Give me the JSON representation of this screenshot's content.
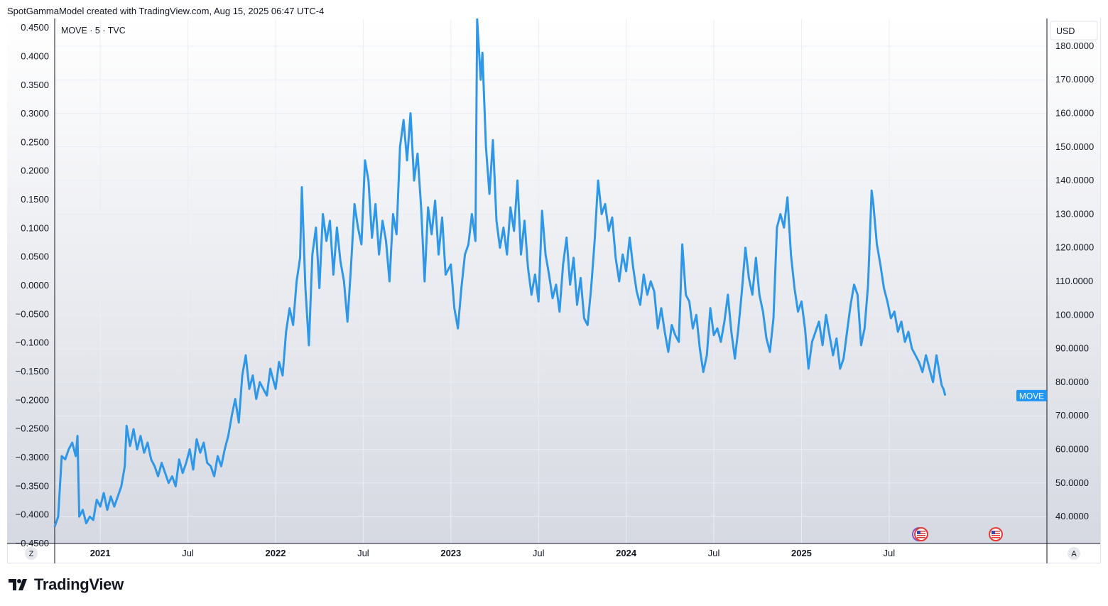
{
  "header": {
    "text": "SpotGammaModel created with TradingView.com, Aug 15, 2025 06:47 UTC-4"
  },
  "legend": {
    "text": "MOVE · 5 · TVC"
  },
  "currency_button": {
    "label": "USD"
  },
  "corner_left": {
    "label": "Z"
  },
  "corner_right": {
    "label": "A"
  },
  "price_tag": {
    "label": "MOVE",
    "color": "#2196f3"
  },
  "footer": {
    "brand": "TradingView"
  },
  "colors": {
    "line": "#2f97e8",
    "grid": "#e9eef5",
    "bg_top": "#ffffff",
    "bg_bottom": "#d6d9e2"
  },
  "icons": [
    "us-flag-event-icon",
    "us-flag-event-icon"
  ],
  "chart_data": {
    "type": "line",
    "series": [
      {
        "name": "MOVE"
      }
    ],
    "x_ticks": [
      {
        "label": "2021",
        "bold": true
      },
      {
        "label": "Jul",
        "bold": false
      },
      {
        "label": "2022",
        "bold": true
      },
      {
        "label": "Jul",
        "bold": false
      },
      {
        "label": "2023",
        "bold": true
      },
      {
        "label": "Jul",
        "bold": false
      },
      {
        "label": "2024",
        "bold": true
      },
      {
        "label": "Jul",
        "bold": false
      },
      {
        "label": "2025",
        "bold": true
      },
      {
        "label": "Jul",
        "bold": false
      }
    ],
    "x_tick_dates": [
      2021.0,
      2021.5,
      2022.0,
      2022.5,
      2023.0,
      2023.5,
      2024.0,
      2024.5,
      2025.0,
      2025.5
    ],
    "xlim": [
      2020.74,
      2026.4
    ],
    "left_axis": {
      "ylim": [
        -0.45,
        0.465
      ],
      "ticks": [
        "0.4500",
        "0.4000",
        "0.3500",
        "0.3000",
        "0.2500",
        "0.2000",
        "0.1500",
        "0.1000",
        "0.0500",
        "0.0000",
        "−0.0500",
        "−0.1000",
        "−0.1500",
        "−0.2000",
        "−0.2500",
        "−0.3000",
        "−0.3500",
        "−0.4000",
        "−0.4500"
      ],
      "tick_values": [
        0.45,
        0.4,
        0.35,
        0.3,
        0.25,
        0.2,
        0.15,
        0.1,
        0.05,
        0.0,
        -0.05,
        -0.1,
        -0.15,
        -0.2,
        -0.25,
        -0.3,
        -0.35,
        -0.4,
        -0.45
      ]
    },
    "right_axis": {
      "ylim": [
        32.0,
        188.0
      ],
      "ticks": [
        "180.0000",
        "170.0000",
        "160.0000",
        "150.0000",
        "140.0000",
        "130.0000",
        "120.0000",
        "110.0000",
        "100.0000",
        "90.0000",
        "80.0000",
        "70.0000",
        "60.0000",
        "50.0000",
        "40.0000"
      ],
      "tick_values": [
        180,
        170,
        160,
        150,
        140,
        130,
        120,
        110,
        100,
        90,
        80,
        70,
        60,
        50,
        40
      ]
    },
    "last_value": 76.0,
    "points": [
      [
        2020.74,
        37
      ],
      [
        2020.76,
        40
      ],
      [
        2020.78,
        58
      ],
      [
        2020.8,
        57
      ],
      [
        2020.82,
        60
      ],
      [
        2020.84,
        62
      ],
      [
        2020.86,
        58
      ],
      [
        2020.87,
        64
      ],
      [
        2020.88,
        40
      ],
      [
        2020.9,
        42
      ],
      [
        2020.92,
        38
      ],
      [
        2020.94,
        40
      ],
      [
        2020.96,
        39
      ],
      [
        2020.98,
        45
      ],
      [
        2021.0,
        43
      ],
      [
        2021.02,
        47
      ],
      [
        2021.04,
        42
      ],
      [
        2021.06,
        46
      ],
      [
        2021.08,
        43
      ],
      [
        2021.1,
        46
      ],
      [
        2021.12,
        49
      ],
      [
        2021.14,
        55
      ],
      [
        2021.15,
        67
      ],
      [
        2021.17,
        61
      ],
      [
        2021.19,
        66
      ],
      [
        2021.21,
        60
      ],
      [
        2021.23,
        64
      ],
      [
        2021.25,
        59
      ],
      [
        2021.27,
        62
      ],
      [
        2021.29,
        57
      ],
      [
        2021.31,
        55
      ],
      [
        2021.33,
        52
      ],
      [
        2021.35,
        56
      ],
      [
        2021.37,
        53
      ],
      [
        2021.39,
        50
      ],
      [
        2021.41,
        52
      ],
      [
        2021.43,
        49
      ],
      [
        2021.45,
        57
      ],
      [
        2021.47,
        53
      ],
      [
        2021.49,
        56
      ],
      [
        2021.51,
        60
      ],
      [
        2021.53,
        54
      ],
      [
        2021.55,
        63
      ],
      [
        2021.57,
        59
      ],
      [
        2021.59,
        62
      ],
      [
        2021.61,
        56
      ],
      [
        2021.63,
        55
      ],
      [
        2021.65,
        52
      ],
      [
        2021.67,
        58
      ],
      [
        2021.69,
        55
      ],
      [
        2021.71,
        60
      ],
      [
        2021.73,
        64
      ],
      [
        2021.75,
        70
      ],
      [
        2021.77,
        75
      ],
      [
        2021.79,
        68
      ],
      [
        2021.81,
        82
      ],
      [
        2021.83,
        88
      ],
      [
        2021.85,
        78
      ],
      [
        2021.87,
        82
      ],
      [
        2021.89,
        75
      ],
      [
        2021.91,
        80
      ],
      [
        2021.93,
        78
      ],
      [
        2021.95,
        76
      ],
      [
        2021.97,
        84
      ],
      [
        2022.0,
        78
      ],
      [
        2022.02,
        86
      ],
      [
        2022.04,
        82
      ],
      [
        2022.06,
        95
      ],
      [
        2022.08,
        102
      ],
      [
        2022.1,
        97
      ],
      [
        2022.12,
        110
      ],
      [
        2022.14,
        117
      ],
      [
        2022.15,
        138
      ],
      [
        2022.17,
        108
      ],
      [
        2022.19,
        91
      ],
      [
        2022.21,
        118
      ],
      [
        2022.23,
        126
      ],
      [
        2022.25,
        108
      ],
      [
        2022.27,
        130
      ],
      [
        2022.29,
        122
      ],
      [
        2022.31,
        128
      ],
      [
        2022.33,
        112
      ],
      [
        2022.35,
        126
      ],
      [
        2022.37,
        116
      ],
      [
        2022.39,
        110
      ],
      [
        2022.41,
        98
      ],
      [
        2022.43,
        114
      ],
      [
        2022.45,
        133
      ],
      [
        2022.47,
        126
      ],
      [
        2022.49,
        121
      ],
      [
        2022.51,
        146
      ],
      [
        2022.53,
        140
      ],
      [
        2022.55,
        123
      ],
      [
        2022.57,
        133
      ],
      [
        2022.59,
        118
      ],
      [
        2022.61,
        128
      ],
      [
        2022.63,
        122
      ],
      [
        2022.65,
        110
      ],
      [
        2022.67,
        130
      ],
      [
        2022.69,
        124
      ],
      [
        2022.71,
        150
      ],
      [
        2022.73,
        158
      ],
      [
        2022.75,
        146
      ],
      [
        2022.77,
        160
      ],
      [
        2022.79,
        140
      ],
      [
        2022.81,
        148
      ],
      [
        2022.83,
        132
      ],
      [
        2022.85,
        110
      ],
      [
        2022.87,
        132
      ],
      [
        2022.89,
        124
      ],
      [
        2022.91,
        134
      ],
      [
        2022.93,
        118
      ],
      [
        2022.95,
        129
      ],
      [
        2022.97,
        112
      ],
      [
        2023.0,
        115
      ],
      [
        2023.02,
        102
      ],
      [
        2023.04,
        96
      ],
      [
        2023.06,
        108
      ],
      [
        2023.08,
        118
      ],
      [
        2023.1,
        121
      ],
      [
        2023.12,
        130
      ],
      [
        2023.14,
        122
      ],
      [
        2023.15,
        188
      ],
      [
        2023.17,
        170
      ],
      [
        2023.18,
        178
      ],
      [
        2023.2,
        150
      ],
      [
        2023.22,
        136
      ],
      [
        2023.24,
        152
      ],
      [
        2023.26,
        128
      ],
      [
        2023.28,
        120
      ],
      [
        2023.3,
        126
      ],
      [
        2023.32,
        118
      ],
      [
        2023.34,
        132
      ],
      [
        2023.36,
        125
      ],
      [
        2023.38,
        140
      ],
      [
        2023.4,
        118
      ],
      [
        2023.42,
        128
      ],
      [
        2023.44,
        114
      ],
      [
        2023.46,
        106
      ],
      [
        2023.48,
        112
      ],
      [
        2023.5,
        104
      ],
      [
        2023.52,
        131
      ],
      [
        2023.54,
        118
      ],
      [
        2023.56,
        112
      ],
      [
        2023.58,
        105
      ],
      [
        2023.6,
        109
      ],
      [
        2023.62,
        101
      ],
      [
        2023.64,
        115
      ],
      [
        2023.66,
        123
      ],
      [
        2023.68,
        109
      ],
      [
        2023.7,
        117
      ],
      [
        2023.72,
        103
      ],
      [
        2023.74,
        111
      ],
      [
        2023.76,
        99
      ],
      [
        2023.78,
        97
      ],
      [
        2023.8,
        108
      ],
      [
        2023.82,
        122
      ],
      [
        2023.84,
        140
      ],
      [
        2023.86,
        130
      ],
      [
        2023.88,
        133
      ],
      [
        2023.9,
        125
      ],
      [
        2023.92,
        129
      ],
      [
        2023.94,
        117
      ],
      [
        2023.96,
        110
      ],
      [
        2023.98,
        118
      ],
      [
        2024.0,
        113
      ],
      [
        2024.02,
        123
      ],
      [
        2024.04,
        114
      ],
      [
        2024.06,
        107
      ],
      [
        2024.08,
        103
      ],
      [
        2024.1,
        112
      ],
      [
        2024.12,
        106
      ],
      [
        2024.14,
        110
      ],
      [
        2024.16,
        107
      ],
      [
        2024.18,
        96
      ],
      [
        2024.2,
        102
      ],
      [
        2024.22,
        95
      ],
      [
        2024.24,
        89
      ],
      [
        2024.26,
        97
      ],
      [
        2024.28,
        94
      ],
      [
        2024.3,
        92
      ],
      [
        2024.32,
        121
      ],
      [
        2024.34,
        106
      ],
      [
        2024.36,
        104
      ],
      [
        2024.38,
        96
      ],
      [
        2024.4,
        100
      ],
      [
        2024.42,
        90
      ],
      [
        2024.44,
        83
      ],
      [
        2024.46,
        88
      ],
      [
        2024.48,
        102
      ],
      [
        2024.5,
        94
      ],
      [
        2024.52,
        96
      ],
      [
        2024.54,
        92
      ],
      [
        2024.56,
        98
      ],
      [
        2024.58,
        106
      ],
      [
        2024.6,
        95
      ],
      [
        2024.62,
        87
      ],
      [
        2024.64,
        96
      ],
      [
        2024.66,
        107
      ],
      [
        2024.68,
        120
      ],
      [
        2024.7,
        111
      ],
      [
        2024.72,
        106
      ],
      [
        2024.74,
        117
      ],
      [
        2024.76,
        106
      ],
      [
        2024.78,
        101
      ],
      [
        2024.8,
        93
      ],
      [
        2024.82,
        89
      ],
      [
        2024.84,
        99
      ],
      [
        2024.86,
        126
      ],
      [
        2024.88,
        130
      ],
      [
        2024.9,
        126
      ],
      [
        2024.92,
        135
      ],
      [
        2024.94,
        118
      ],
      [
        2024.96,
        108
      ],
      [
        2024.98,
        101
      ],
      [
        2025.0,
        104
      ],
      [
        2025.02,
        96
      ],
      [
        2025.04,
        84
      ],
      [
        2025.06,
        92
      ],
      [
        2025.08,
        95
      ],
      [
        2025.1,
        98
      ],
      [
        2025.12,
        91
      ],
      [
        2025.14,
        100
      ],
      [
        2025.16,
        94
      ],
      [
        2025.18,
        88
      ],
      [
        2025.2,
        93
      ],
      [
        2025.22,
        84
      ],
      [
        2025.24,
        87
      ],
      [
        2025.26,
        95
      ],
      [
        2025.28,
        103
      ],
      [
        2025.3,
        109
      ],
      [
        2025.32,
        106
      ],
      [
        2025.34,
        91
      ],
      [
        2025.36,
        96
      ],
      [
        2025.38,
        109
      ],
      [
        2025.4,
        137
      ],
      [
        2025.41,
        133
      ],
      [
        2025.43,
        121
      ],
      [
        2025.45,
        115
      ],
      [
        2025.47,
        108
      ],
      [
        2025.49,
        104
      ],
      [
        2025.51,
        99
      ],
      [
        2025.53,
        101
      ],
      [
        2025.55,
        95
      ],
      [
        2025.57,
        98
      ],
      [
        2025.59,
        92
      ],
      [
        2025.61,
        95
      ],
      [
        2025.63,
        90
      ],
      [
        2025.65,
        88
      ],
      [
        2025.67,
        86
      ],
      [
        2025.69,
        83
      ],
      [
        2025.71,
        88
      ],
      [
        2025.73,
        84
      ],
      [
        2025.75,
        80
      ],
      [
        2025.77,
        88
      ],
      [
        2025.79,
        82
      ],
      [
        2025.8,
        79
      ],
      [
        2025.81,
        78
      ],
      [
        2025.82,
        76
      ]
    ]
  }
}
